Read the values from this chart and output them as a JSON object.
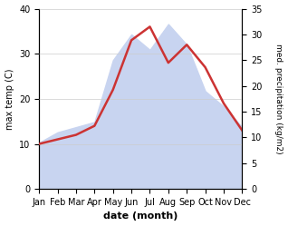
{
  "months": [
    "Jan",
    "Feb",
    "Mar",
    "Apr",
    "May",
    "Jun",
    "Jul",
    "Aug",
    "Sep",
    "Oct",
    "Nov",
    "Dec"
  ],
  "month_indices": [
    0,
    1,
    2,
    3,
    4,
    5,
    6,
    7,
    8,
    9,
    10,
    11
  ],
  "temperature": [
    10,
    11,
    12,
    14,
    22,
    33,
    36,
    28,
    32,
    27,
    19,
    13
  ],
  "precipitation": [
    9,
    11,
    12,
    13,
    25,
    30,
    27,
    32,
    28,
    19,
    16,
    12
  ],
  "temp_color": "#cc3333",
  "precip_fill_color": "#c8d4f0",
  "precip_line_color": "#c8d4f0",
  "xlabel": "date (month)",
  "ylabel_left": "max temp (C)",
  "ylabel_right": "med. precipitation (kg/m2)",
  "ylim_left": [
    0,
    40
  ],
  "ylim_right": [
    0,
    35
  ],
  "yticks_left": [
    0,
    10,
    20,
    30,
    40
  ],
  "yticks_right": [
    0,
    5,
    10,
    15,
    20,
    25,
    30,
    35
  ],
  "figsize": [
    3.18,
    2.49
  ],
  "dpi": 100
}
